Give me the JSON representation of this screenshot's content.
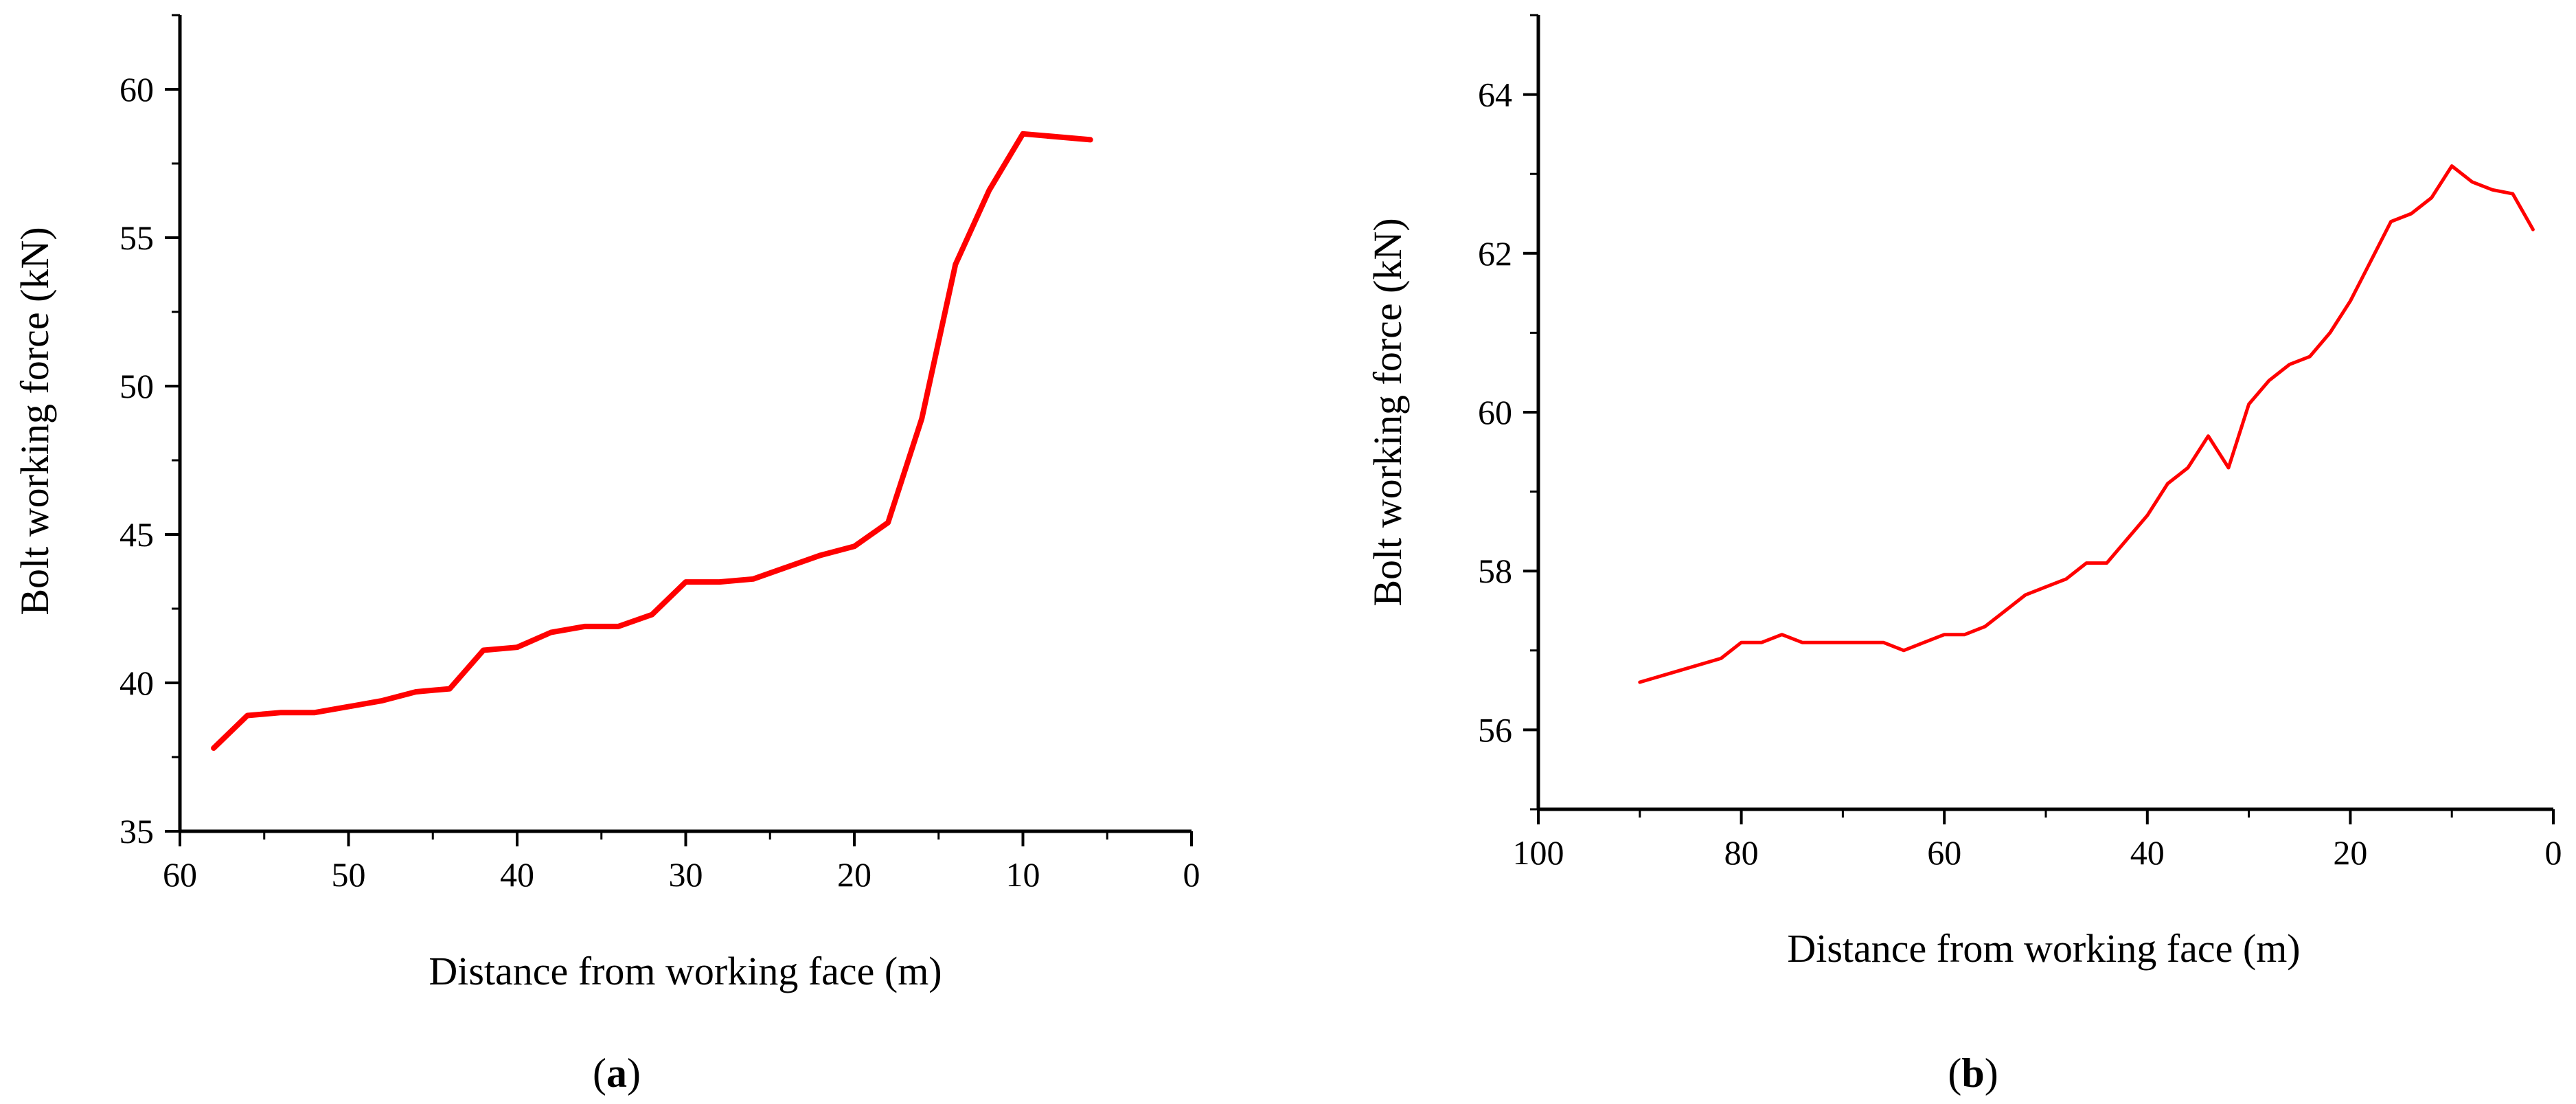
{
  "figure": {
    "panels": [
      {
        "label_open": "(",
        "label_letter": "a",
        "label_close": ")"
      },
      {
        "label_open": "(",
        "label_letter": "b",
        "label_close": ")"
      }
    ]
  },
  "chart_data": [
    {
      "type": "line",
      "xlabel": "Distance from working face (m)",
      "ylabel": "Bolt working force (kN)",
      "xlim": [
        60,
        0
      ],
      "ylim": [
        35,
        62.5
      ],
      "x_ticks": [
        "60",
        "50",
        "40",
        "30",
        "20",
        "10",
        "0"
      ],
      "x_tick_values": [
        60,
        50,
        40,
        30,
        20,
        10,
        0
      ],
      "y_ticks": [
        "35",
        "40",
        "45",
        "50",
        "55",
        "60"
      ],
      "y_tick_values": [
        35,
        40,
        45,
        50,
        55,
        60
      ],
      "color": "#ff0000",
      "series": [
        {
          "name": "Bolt working force",
          "x": [
            58,
            56,
            54,
            52,
            50,
            48,
            46,
            44,
            42,
            40,
            38,
            36,
            34,
            32,
            30,
            28,
            26,
            24,
            22,
            20,
            18,
            16,
            14,
            12,
            10,
            6
          ],
          "y": [
            37.8,
            38.9,
            39.0,
            39.0,
            39.2,
            39.4,
            39.7,
            39.8,
            41.1,
            41.2,
            41.7,
            41.9,
            41.9,
            42.3,
            43.4,
            43.4,
            43.5,
            43.9,
            44.3,
            44.6,
            45.4,
            48.9,
            54.1,
            56.6,
            58.5,
            58.3
          ]
        }
      ]
    },
    {
      "type": "line",
      "xlabel": "Distance from working face (m)",
      "ylabel": "Bolt working force (kN)",
      "xlim": [
        100,
        0
      ],
      "ylim": [
        55,
        65
      ],
      "x_ticks": [
        "100",
        "80",
        "60",
        "40",
        "20",
        "0"
      ],
      "x_tick_values": [
        100,
        80,
        60,
        40,
        20,
        0
      ],
      "y_ticks": [
        "56",
        "58",
        "60",
        "62",
        "64"
      ],
      "y_tick_values": [
        56,
        58,
        60,
        62,
        64
      ],
      "color": "#ff0000",
      "series": [
        {
          "name": "Bolt working force",
          "x": [
            90,
            86,
            82,
            80,
            78,
            76,
            74,
            72,
            70,
            68,
            66,
            64,
            62,
            60,
            58,
            56,
            54,
            52,
            50,
            48,
            46,
            44,
            42,
            40,
            38,
            36,
            34,
            32,
            30,
            28,
            26,
            24,
            22,
            20,
            18,
            16,
            14,
            12,
            10,
            8,
            6,
            4,
            2
          ],
          "y": [
            56.6,
            56.75,
            56.9,
            57.1,
            57.1,
            57.2,
            57.1,
            57.1,
            57.1,
            57.1,
            57.1,
            57.0,
            57.1,
            57.2,
            57.2,
            57.3,
            57.5,
            57.7,
            57.8,
            57.9,
            58.1,
            58.1,
            58.4,
            58.7,
            59.1,
            59.3,
            59.7,
            59.3,
            60.1,
            60.4,
            60.6,
            60.7,
            61.0,
            61.4,
            61.9,
            62.4,
            62.5,
            62.7,
            63.1,
            62.9,
            62.8,
            62.75,
            62.3
          ]
        }
      ]
    }
  ]
}
